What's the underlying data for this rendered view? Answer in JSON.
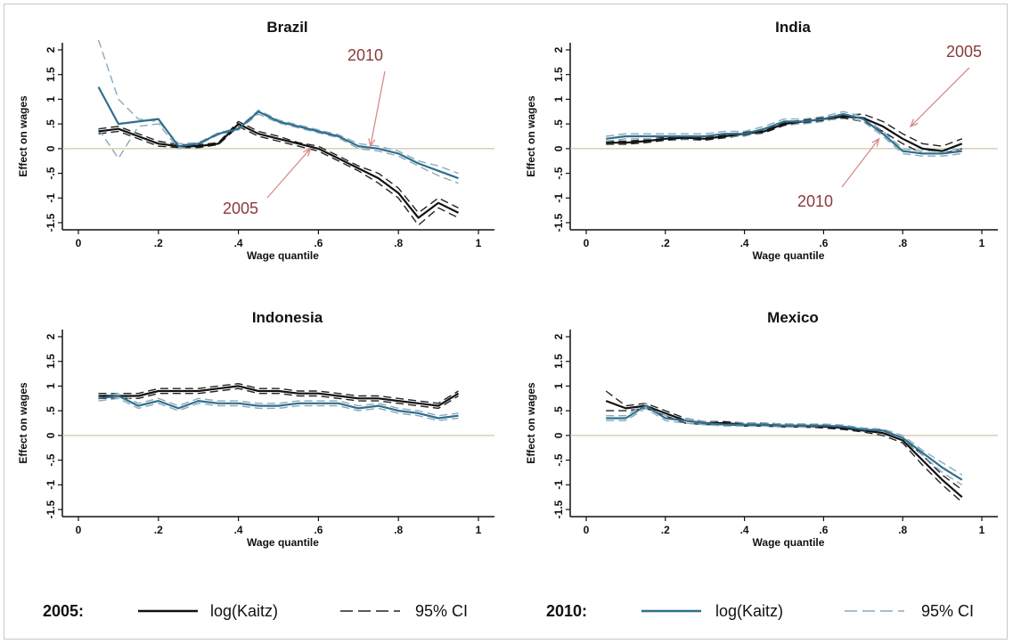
{
  "chart_data": [
    {
      "type": "line",
      "title": "Brazil",
      "xlabel": "Wage quantile",
      "ylabel": "Effect on wages",
      "xlim": [
        0,
        1
      ],
      "ylim": [
        -1.5,
        2
      ],
      "xticks": [
        0,
        0.2,
        0.4,
        0.6,
        0.8,
        1
      ],
      "xtick_labels": [
        "0",
        ".2",
        ".4",
        ".6",
        ".8",
        "1"
      ],
      "yticks": [
        -1.5,
        -1,
        -0.5,
        0,
        0.5,
        1,
        1.5,
        2
      ],
      "ytick_labels": [
        "-1.5",
        "-1",
        "-.5",
        "0",
        ".5",
        "1",
        "1.5",
        "2"
      ],
      "x": [
        0.05,
        0.1,
        0.15,
        0.2,
        0.25,
        0.3,
        0.35,
        0.4,
        0.45,
        0.5,
        0.55,
        0.6,
        0.65,
        0.7,
        0.75,
        0.8,
        0.85,
        0.9,
        0.95
      ],
      "series": [
        {
          "name": "log(Kaitz)",
          "year": "2005",
          "style": "solid",
          "color": "#111111",
          "values": [
            0.35,
            0.4,
            0.25,
            0.1,
            0.05,
            0.05,
            0.1,
            0.5,
            0.3,
            0.2,
            0.1,
            0.0,
            -0.2,
            -0.4,
            -0.6,
            -0.9,
            -1.4,
            -1.1,
            -1.3
          ]
        },
        {
          "name": "95% CI",
          "year": "2005",
          "style": "dash",
          "color": "#222222",
          "values": [
            0.4,
            0.45,
            0.3,
            0.15,
            0.08,
            0.08,
            0.12,
            0.55,
            0.35,
            0.25,
            0.12,
            0.05,
            -0.15,
            -0.35,
            -0.5,
            -0.8,
            -1.3,
            -1.0,
            -1.2
          ]
        },
        {
          "name": "95% CI",
          "year": "2005",
          "style": "dash",
          "color": "#222222",
          "values": [
            0.3,
            0.35,
            0.2,
            0.05,
            0.02,
            0.02,
            0.08,
            0.45,
            0.25,
            0.15,
            0.05,
            -0.05,
            -0.25,
            -0.45,
            -0.7,
            -1.0,
            -1.55,
            -1.2,
            -1.4
          ]
        },
        {
          "name": "log(Kaitz)",
          "year": "2010",
          "style": "solid",
          "color": "#2f6f8f",
          "values": [
            1.25,
            0.5,
            0.55,
            0.6,
            0.05,
            0.1,
            0.3,
            0.4,
            0.75,
            0.55,
            0.45,
            0.35,
            0.25,
            0.05,
            0.0,
            -0.1,
            -0.3,
            -0.45,
            -0.6
          ]
        },
        {
          "name": "95% CI",
          "year": "2010",
          "style": "dash",
          "color": "#8aa9ba",
          "values": [
            2.2,
            1.0,
            0.6,
            0.55,
            0.1,
            0.12,
            0.32,
            0.42,
            0.78,
            0.58,
            0.48,
            0.38,
            0.28,
            0.1,
            0.05,
            -0.05,
            -0.25,
            -0.35,
            -0.5
          ]
        },
        {
          "name": "95% CI",
          "year": "2010",
          "style": "dash",
          "color": "#8aa9ba",
          "values": [
            0.4,
            -0.2,
            0.45,
            0.5,
            0.0,
            0.08,
            0.28,
            0.38,
            0.7,
            0.52,
            0.42,
            0.32,
            0.22,
            0.0,
            -0.05,
            -0.15,
            -0.35,
            -0.55,
            -0.7
          ]
        }
      ],
      "annotations": [
        {
          "text": "2010",
          "target": [
            0.73,
            0.05
          ]
        },
        {
          "text": "2005",
          "target": [
            0.58,
            0.0
          ]
        }
      ]
    },
    {
      "type": "line",
      "title": "India",
      "xlabel": "Wage quantile",
      "ylabel": "Effect on wages",
      "xlim": [
        0,
        1
      ],
      "ylim": [
        -1.5,
        2
      ],
      "xticks": [
        0,
        0.2,
        0.4,
        0.6,
        0.8,
        1
      ],
      "xtick_labels": [
        "0",
        ".2",
        ".4",
        ".6",
        ".8",
        "1"
      ],
      "yticks": [
        -1.5,
        -1,
        -0.5,
        0,
        0.5,
        1,
        1.5,
        2
      ],
      "ytick_labels": [
        "-1.5",
        "-1",
        "-.5",
        "0",
        ".5",
        "1",
        "1.5",
        "2"
      ],
      "x": [
        0.05,
        0.1,
        0.15,
        0.2,
        0.25,
        0.3,
        0.35,
        0.4,
        0.45,
        0.5,
        0.55,
        0.6,
        0.65,
        0.7,
        0.75,
        0.8,
        0.85,
        0.9,
        0.95
      ],
      "series": [
        {
          "name": "log(Kaitz)",
          "year": "2005",
          "style": "solid",
          "color": "#111111",
          "values": [
            0.12,
            0.12,
            0.15,
            0.2,
            0.22,
            0.2,
            0.25,
            0.3,
            0.35,
            0.5,
            0.55,
            0.6,
            0.65,
            0.62,
            0.45,
            0.2,
            0.0,
            -0.05,
            0.1
          ]
        },
        {
          "name": "95% CI",
          "year": "2005",
          "style": "dash",
          "color": "#222222",
          "values": [
            0.15,
            0.15,
            0.18,
            0.23,
            0.25,
            0.23,
            0.28,
            0.33,
            0.38,
            0.53,
            0.58,
            0.63,
            0.68,
            0.7,
            0.55,
            0.3,
            0.1,
            0.05,
            0.2
          ]
        },
        {
          "name": "95% CI",
          "year": "2005",
          "style": "dash",
          "color": "#222222",
          "values": [
            0.09,
            0.09,
            0.12,
            0.17,
            0.19,
            0.17,
            0.22,
            0.27,
            0.32,
            0.47,
            0.52,
            0.57,
            0.62,
            0.55,
            0.35,
            0.1,
            -0.1,
            -0.1,
            0.0
          ]
        },
        {
          "name": "log(Kaitz)",
          "year": "2010",
          "style": "solid",
          "color": "#2f6f8f",
          "values": [
            0.2,
            0.25,
            0.25,
            0.25,
            0.25,
            0.25,
            0.3,
            0.3,
            0.4,
            0.55,
            0.55,
            0.6,
            0.7,
            0.6,
            0.3,
            -0.05,
            -0.1,
            -0.1,
            -0.05
          ]
        },
        {
          "name": "95% CI",
          "year": "2010",
          "style": "dash",
          "color": "#8aa9ba",
          "values": [
            0.25,
            0.3,
            0.3,
            0.3,
            0.3,
            0.3,
            0.35,
            0.35,
            0.45,
            0.6,
            0.6,
            0.65,
            0.75,
            0.65,
            0.35,
            0.0,
            -0.05,
            -0.05,
            0.0
          ]
        },
        {
          "name": "95% CI",
          "year": "2010",
          "style": "dash",
          "color": "#8aa9ba",
          "values": [
            0.15,
            0.2,
            0.2,
            0.2,
            0.2,
            0.2,
            0.25,
            0.25,
            0.35,
            0.5,
            0.5,
            0.55,
            0.65,
            0.55,
            0.25,
            -0.1,
            -0.15,
            -0.15,
            -0.1
          ]
        }
      ],
      "annotations": [
        {
          "text": "2005",
          "target": [
            0.82,
            0.45
          ]
        },
        {
          "text": "2010",
          "target": [
            0.74,
            0.2
          ]
        }
      ]
    },
    {
      "type": "line",
      "title": "Indonesia",
      "xlabel": "Wage quantile",
      "ylabel": "Effect on wages",
      "xlim": [
        0,
        1
      ],
      "ylim": [
        -1.5,
        2
      ],
      "xticks": [
        0,
        0.2,
        0.4,
        0.6,
        0.8,
        1
      ],
      "xtick_labels": [
        "0",
        ".2",
        ".4",
        ".6",
        ".8",
        "1"
      ],
      "yticks": [
        -1.5,
        -1,
        -0.5,
        0,
        0.5,
        1,
        1.5,
        2
      ],
      "ytick_labels": [
        "-1.5",
        "-1",
        "-.5",
        "0",
        ".5",
        "1",
        "1.5",
        "2"
      ],
      "x": [
        0.05,
        0.1,
        0.15,
        0.2,
        0.25,
        0.3,
        0.35,
        0.4,
        0.45,
        0.5,
        0.55,
        0.6,
        0.65,
        0.7,
        0.75,
        0.8,
        0.85,
        0.9,
        0.95
      ],
      "series": [
        {
          "name": "log(Kaitz)",
          "year": "2005",
          "style": "solid",
          "color": "#111111",
          "values": [
            0.8,
            0.8,
            0.8,
            0.9,
            0.9,
            0.9,
            0.95,
            1.0,
            0.9,
            0.9,
            0.85,
            0.85,
            0.8,
            0.75,
            0.75,
            0.7,
            0.65,
            0.6,
            0.85
          ]
        },
        {
          "name": "95% CI",
          "year": "2005",
          "style": "dash",
          "color": "#222222",
          "values": [
            0.85,
            0.85,
            0.85,
            0.95,
            0.95,
            0.95,
            1.0,
            1.05,
            0.95,
            0.95,
            0.9,
            0.9,
            0.85,
            0.8,
            0.8,
            0.75,
            0.7,
            0.65,
            0.9
          ]
        },
        {
          "name": "95% CI",
          "year": "2005",
          "style": "dash",
          "color": "#222222",
          "values": [
            0.75,
            0.75,
            0.75,
            0.85,
            0.85,
            0.85,
            0.9,
            0.95,
            0.85,
            0.85,
            0.8,
            0.8,
            0.75,
            0.7,
            0.7,
            0.65,
            0.6,
            0.55,
            0.8
          ]
        },
        {
          "name": "log(Kaitz)",
          "year": "2010",
          "style": "solid",
          "color": "#2f6f8f",
          "values": [
            0.75,
            0.8,
            0.6,
            0.7,
            0.55,
            0.7,
            0.65,
            0.65,
            0.6,
            0.6,
            0.65,
            0.65,
            0.65,
            0.55,
            0.6,
            0.5,
            0.45,
            0.35,
            0.4
          ]
        },
        {
          "name": "95% CI",
          "year": "2010",
          "style": "dash",
          "color": "#8aa9ba",
          "values": [
            0.8,
            0.85,
            0.65,
            0.75,
            0.6,
            0.75,
            0.7,
            0.7,
            0.65,
            0.65,
            0.7,
            0.7,
            0.7,
            0.6,
            0.65,
            0.55,
            0.5,
            0.4,
            0.45
          ]
        },
        {
          "name": "95% CI",
          "year": "2010",
          "style": "dash",
          "color": "#8aa9ba",
          "values": [
            0.7,
            0.75,
            0.55,
            0.65,
            0.5,
            0.65,
            0.6,
            0.6,
            0.55,
            0.55,
            0.6,
            0.6,
            0.6,
            0.5,
            0.55,
            0.45,
            0.4,
            0.3,
            0.35
          ]
        }
      ]
    },
    {
      "type": "line",
      "title": "Mexico",
      "xlabel": "Wage quantile",
      "ylabel": "Effect on wages",
      "xlim": [
        0,
        1
      ],
      "ylim": [
        -1.5,
        2
      ],
      "xticks": [
        0,
        0.2,
        0.4,
        0.6,
        0.8,
        1
      ],
      "xtick_labels": [
        "0",
        ".2",
        ".4",
        ".6",
        ".8",
        "1"
      ],
      "yticks": [
        -1.5,
        -1,
        -0.5,
        0,
        0.5,
        1,
        1.5,
        2
      ],
      "ytick_labels": [
        "-1.5",
        "-1",
        "-.5",
        "0",
        ".5",
        "1",
        "1.5",
        "2"
      ],
      "x": [
        0.05,
        0.1,
        0.15,
        0.2,
        0.25,
        0.3,
        0.35,
        0.4,
        0.45,
        0.5,
        0.55,
        0.6,
        0.65,
        0.7,
        0.75,
        0.8,
        0.85,
        0.9,
        0.95
      ],
      "series": [
        {
          "name": "log(Kaitz)",
          "year": "2005",
          "style": "solid",
          "color": "#111111",
          "values": [
            0.7,
            0.55,
            0.6,
            0.45,
            0.3,
            0.25,
            0.25,
            0.22,
            0.22,
            0.2,
            0.2,
            0.18,
            0.15,
            0.1,
            0.05,
            -0.1,
            -0.5,
            -0.9,
            -1.25
          ]
        },
        {
          "name": "95% CI",
          "year": "2005",
          "style": "dash",
          "color": "#222222",
          "values": [
            0.9,
            0.6,
            0.65,
            0.5,
            0.35,
            0.28,
            0.28,
            0.25,
            0.25,
            0.23,
            0.23,
            0.21,
            0.18,
            0.13,
            0.1,
            -0.05,
            -0.4,
            -0.8,
            -1.1
          ]
        },
        {
          "name": "95% CI",
          "year": "2005",
          "style": "dash",
          "color": "#222222",
          "values": [
            0.5,
            0.5,
            0.55,
            0.4,
            0.25,
            0.22,
            0.22,
            0.19,
            0.19,
            0.17,
            0.17,
            0.15,
            0.12,
            0.07,
            0.0,
            -0.15,
            -0.6,
            -1.0,
            -1.35
          ]
        },
        {
          "name": "log(Kaitz)",
          "year": "2010",
          "style": "solid",
          "color": "#2f6f8f",
          "values": [
            0.35,
            0.35,
            0.6,
            0.35,
            0.3,
            0.25,
            0.22,
            0.22,
            0.22,
            0.2,
            0.2,
            0.2,
            0.18,
            0.12,
            0.1,
            -0.05,
            -0.35,
            -0.65,
            -0.9
          ]
        },
        {
          "name": "95% CI",
          "year": "2010",
          "style": "dash",
          "color": "#8aa9ba",
          "values": [
            0.4,
            0.4,
            0.65,
            0.4,
            0.35,
            0.28,
            0.25,
            0.25,
            0.25,
            0.23,
            0.23,
            0.23,
            0.21,
            0.15,
            0.13,
            0.0,
            -0.3,
            -0.55,
            -0.8
          ]
        },
        {
          "name": "95% CI",
          "year": "2010",
          "style": "dash",
          "color": "#8aa9ba",
          "values": [
            0.3,
            0.3,
            0.55,
            0.3,
            0.25,
            0.22,
            0.19,
            0.19,
            0.19,
            0.17,
            0.17,
            0.17,
            0.15,
            0.09,
            0.07,
            -0.1,
            -0.4,
            -0.75,
            -1.0
          ]
        }
      ]
    }
  ],
  "legend": {
    "group_2005": {
      "year_label": "2005:",
      "line_label": "log(Kaitz)",
      "ci_label": "95% CI",
      "line_color": "#111111",
      "ci_color": "#222222"
    },
    "group_2010": {
      "year_label": "2010:",
      "line_label": "log(Kaitz)",
      "ci_label": "95% CI",
      "line_color": "#2f6f8f",
      "ci_color": "#8aa9ba"
    }
  },
  "colors": {
    "zero_line": "#c8c8a8",
    "annotation": "#8b3a3a",
    "annotation_arrow": "#d98a8a"
  }
}
